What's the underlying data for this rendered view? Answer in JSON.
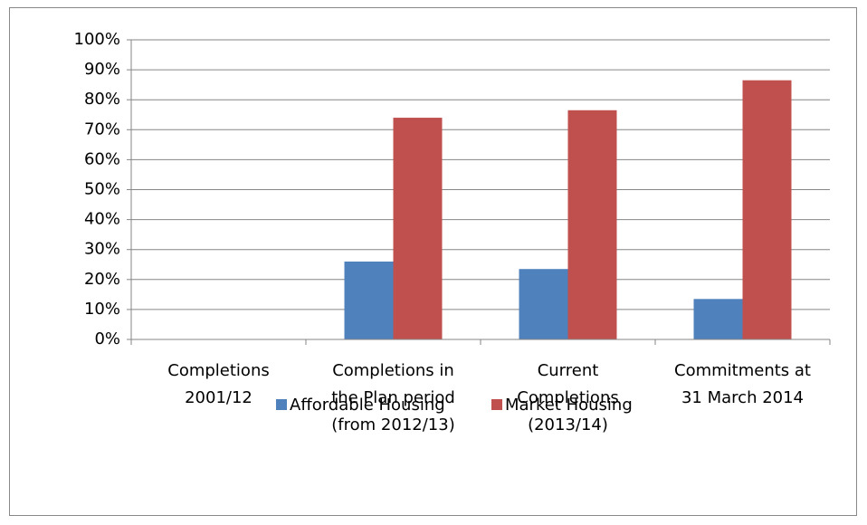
{
  "chart_data": {
    "type": "bar",
    "categories": [
      "Completions\n2001/12",
      "Completions in\nthe Plan period\n(from 2012/13)",
      "Current\nCompletions\n(2013/14)",
      "Commitments at\n31 March 2014"
    ],
    "series": [
      {
        "name": "Affordable Housing",
        "color": "#4f81bd",
        "values": [
          null,
          26,
          23.5,
          13.5
        ]
      },
      {
        "name": "Market Housing",
        "color": "#c0504d",
        "values": [
          null,
          74,
          76.5,
          86.5
        ]
      }
    ],
    "ylim": [
      0,
      100
    ],
    "yticks": [
      {
        "value": 0,
        "label": "0%"
      },
      {
        "value": 10,
        "label": "10%"
      },
      {
        "value": 20,
        "label": "20%"
      },
      {
        "value": 30,
        "label": "30%"
      },
      {
        "value": 40,
        "label": "40%"
      },
      {
        "value": 50,
        "label": "50%"
      },
      {
        "value": 60,
        "label": "60%"
      },
      {
        "value": 70,
        "label": "70%"
      },
      {
        "value": 80,
        "label": "80%"
      },
      {
        "value": 90,
        "label": "90%"
      },
      {
        "value": 100,
        "label": "100%"
      }
    ],
    "grid": true,
    "legend": "bottom"
  }
}
